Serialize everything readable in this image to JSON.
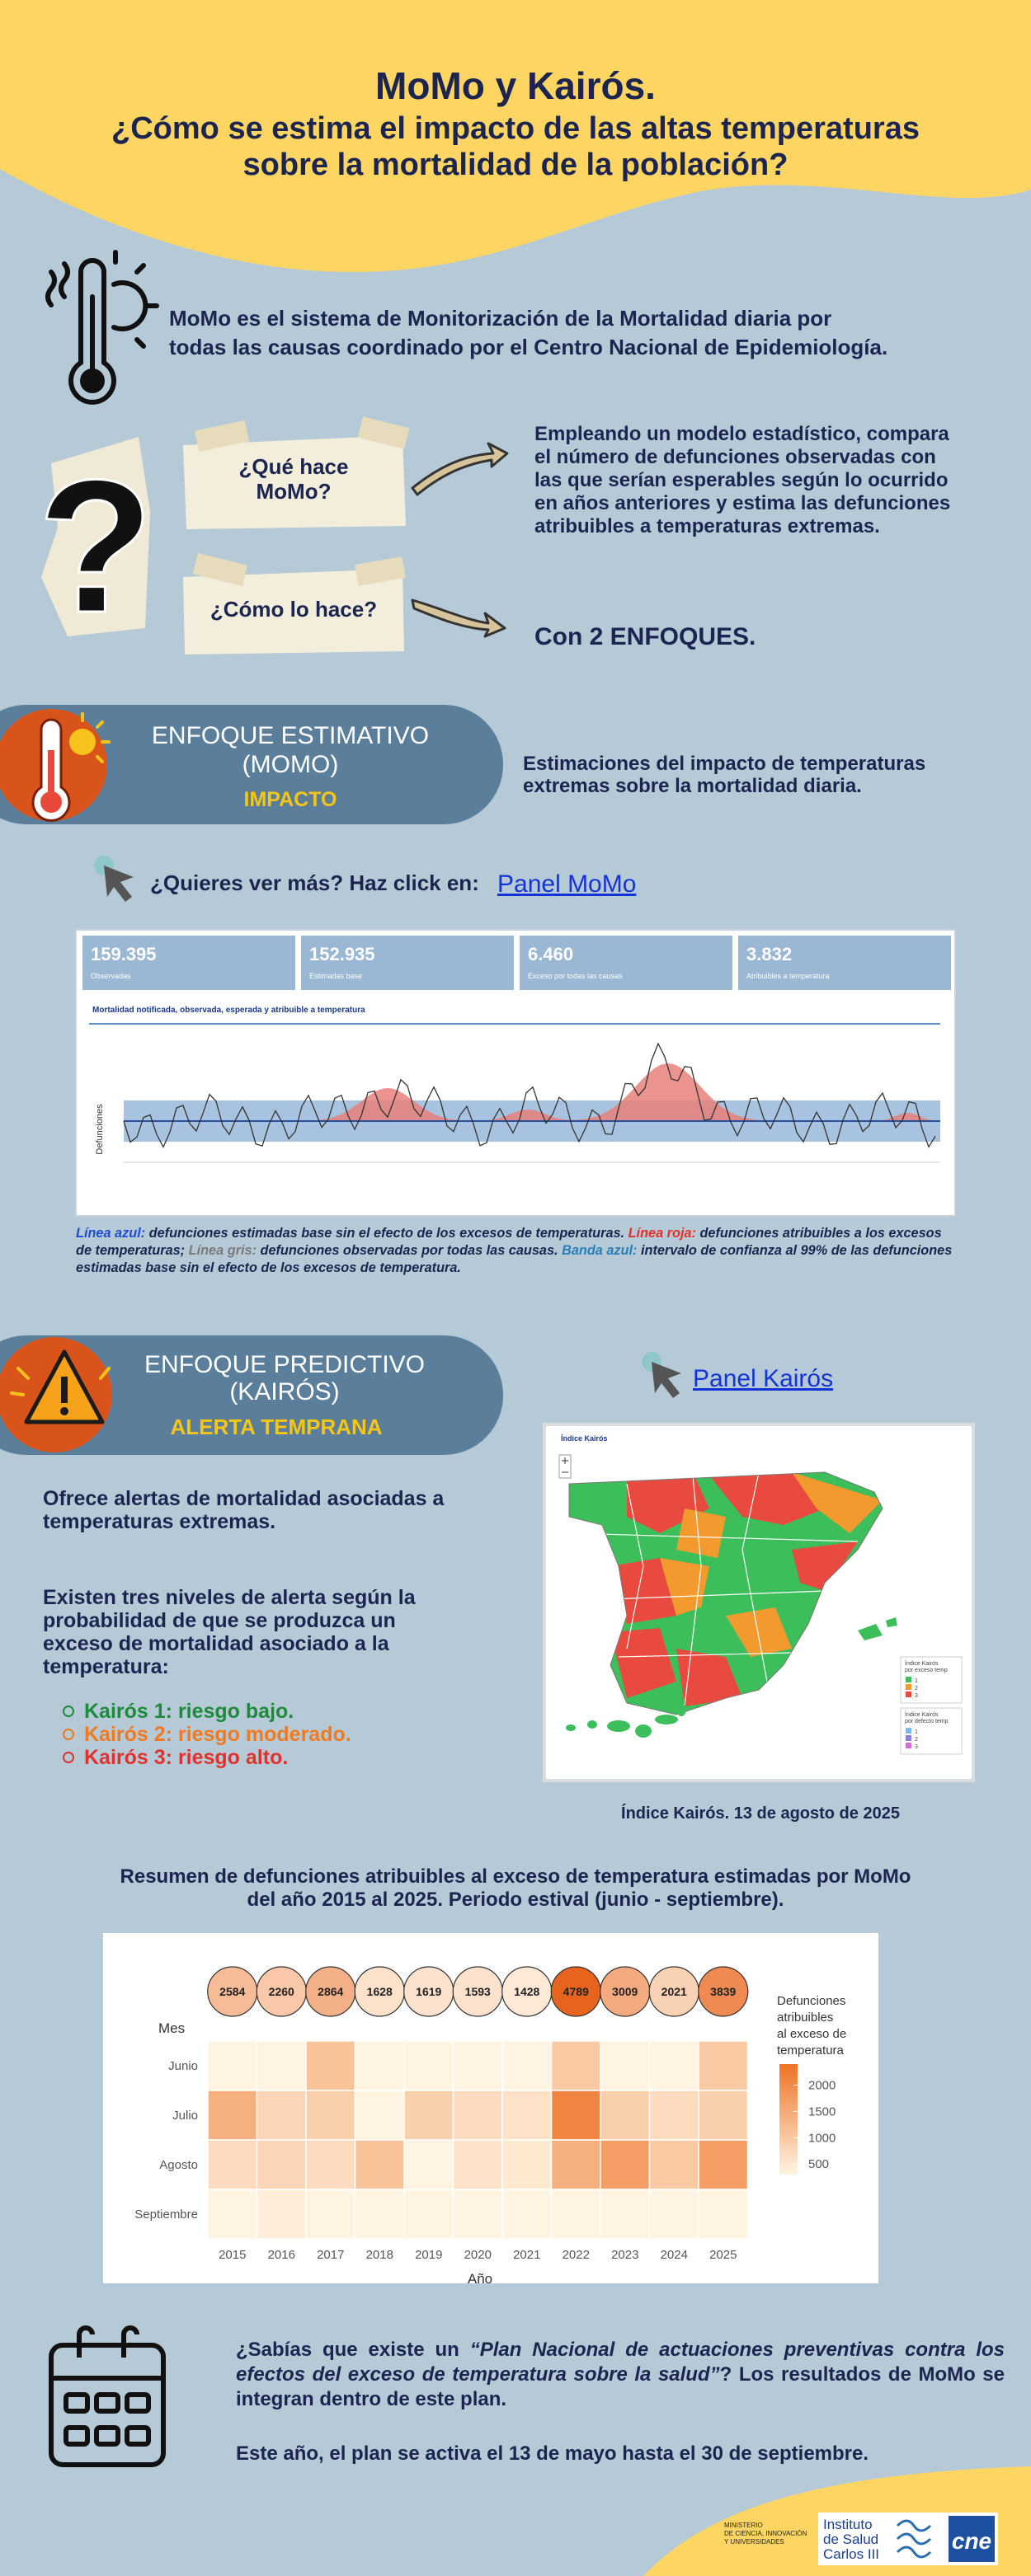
{
  "header": {
    "title": "MoMo y Kairós.",
    "subtitle": [
      "¿Cómo se estima el impacto de las altas temperaturas",
      "sobre la mortalidad de la población?"
    ]
  },
  "intro": [
    "MoMo es el sistema de Monitorización de la Mortalidad diaria por",
    "todas las causas coordinado por el Centro Nacional de Epidemiología."
  ],
  "questions": [
    {
      "label": [
        "¿Qué hace",
        "MoMo?"
      ],
      "answer": [
        "Empleando un modelo estadístico, compara",
        "el número de defunciones observadas con",
        "las que serían esperables según lo ocurrido",
        "en años anteriores y estima las defunciones",
        "atribuibles a temperaturas extremas."
      ]
    },
    {
      "label": [
        "¿Cómo lo hace?"
      ],
      "answer": [
        "Con 2 ENFOQUES."
      ]
    }
  ],
  "estimativo": {
    "title": [
      "ENFOQUE ESTIMATIVO",
      "(MOMO)"
    ],
    "tag": "IMPACTO",
    "description": [
      "Estimaciones del impacto de temperaturas",
      "extremas sobre la mortalidad diaria."
    ],
    "cta": "¿Quieres ver más? Haz click en:",
    "link": "Panel MoMo",
    "panel": {
      "cards": [
        {
          "value": "159.395",
          "label": "Observadas"
        },
        {
          "value": "152.935",
          "label": "Estimadas base"
        },
        {
          "value": "6.460",
          "label": "Exceso por todas las causas"
        },
        {
          "value": "3.832",
          "label": "Atribuibles a temperatura"
        }
      ],
      "chart_title": "Mortalidad notificada, observada, esperada y atribuible a temperatura",
      "y_label": "Defunciones"
    },
    "caption": [
      {
        "text": "Línea azul:",
        "color": "#1f4fd1"
      },
      {
        "text": " defunciones estimadas base sin el efecto de los excesos de temperaturas. "
      },
      {
        "text": "Línea roja:",
        "color": "#e0312c"
      },
      {
        "text": " defunciones atribuibles a los excesos de temperaturas; "
      },
      {
        "text": "Línea gris:",
        "color": "#7a7a7a"
      },
      {
        "text": " defunciones observadas por todas las causas. "
      },
      {
        "text": "Banda azul:",
        "color": "#2a7fb8"
      },
      {
        "text": " intervalo de confianza al 99% de las defunciones estimadas base sin el efecto de los excesos de temperatura."
      }
    ]
  },
  "predictivo": {
    "title": [
      "ENFOQUE PREDICTIVO",
      "(KAIRÓS)"
    ],
    "tag": "ALERTA TEMPRANA",
    "link": "Panel Kairós",
    "description": [
      "Ofrece alertas de mortalidad asociadas a",
      "temperaturas extremas."
    ],
    "levels_intro": [
      "Existen tres niveles de alerta según la",
      "probabilidad de que se produzca un",
      "exceso de mortalidad asociado a la",
      "temperatura:"
    ],
    "levels": [
      {
        "text": "Kairós 1: riesgo bajo.",
        "color": "#1e8a3c"
      },
      {
        "text": "Kairós 2: riesgo moderado.",
        "color": "#f07a20"
      },
      {
        "text": "Kairós 3: riesgo alto.",
        "color": "#e0312c"
      }
    ],
    "map": {
      "title": "Índice Kairós",
      "caption": "Índice Kairós. 13 de agosto de 2025",
      "legends": [
        {
          "title": [
            "Índice Kairós",
            "por exceso temp"
          ],
          "items": [
            "1",
            "2",
            "3"
          ],
          "colors": [
            "#3cbf5a",
            "#f29a2e",
            "#e84a3f"
          ]
        },
        {
          "title": [
            "Índice Kairós",
            "por defecto temp"
          ],
          "items": [
            "1",
            "2",
            "3"
          ],
          "colors": [
            "#7fb7e6",
            "#8c7fe0",
            "#d36ad6"
          ]
        }
      ]
    }
  },
  "heatmap": {
    "title": [
      "Resumen de defunciones atribuibles al exceso de temperatura estimadas por MoMo",
      "del año 2015 al 2025. Periodo estival (junio - septiembre)."
    ],
    "x_label": "Año",
    "y_label": "Mes",
    "years": [
      "2015",
      "2016",
      "2017",
      "2018",
      "2019",
      "2020",
      "2021",
      "2022",
      "2023",
      "2024",
      "2025"
    ],
    "totals": [
      2584,
      2260,
      2864,
      1628,
      1619,
      1593,
      1428,
      4789,
      3009,
      2021,
      3839
    ],
    "months": [
      "Junio",
      "Julio",
      "Agosto",
      "Septiembre"
    ],
    "values": [
      [
        300,
        250,
        1100,
        200,
        300,
        150,
        200,
        1000,
        200,
        200,
        1000
      ],
      [
        1400,
        800,
        900,
        150,
        900,
        700,
        600,
        2100,
        900,
        700,
        900
      ],
      [
        700,
        800,
        700,
        1100,
        250,
        600,
        500,
        1400,
        1700,
        1000,
        1700
      ],
      [
        184,
        410,
        164,
        178,
        169,
        143,
        128,
        289,
        209,
        121,
        239
      ]
    ],
    "legend_title": [
      "Defunciones",
      "atribuibles",
      "al exceso de",
      "temperatura"
    ],
    "colorbar_range": [
      300,
      2400
    ],
    "colorbar_ticks": [
      500,
      1000,
      1500,
      2000
    ],
    "colors": [
      "#fff4e2",
      "#ee7326"
    ]
  },
  "closing": {
    "paragraph": [
      {
        "text": "¿Sabías que existe un "
      },
      {
        "text": "“Plan Nacional de actuaciones preventivas contra los efectos del exceso de temperatura sobre la salud”",
        "italic": true
      },
      {
        "text": "? Los resultados de MoMo se integran dentro de este plan."
      }
    ],
    "note": "Este año, el plan se activa el 13 de mayo hasta el 30 de septiembre."
  },
  "footer": {
    "ministry": [
      "MINISTERIO",
      "DE CIENCIA, INNOVACIÓN",
      "Y UNIVERSIDADES"
    ],
    "institute": [
      "Instituto",
      "de Salud",
      "Carlos III"
    ],
    "cne": "cne"
  }
}
